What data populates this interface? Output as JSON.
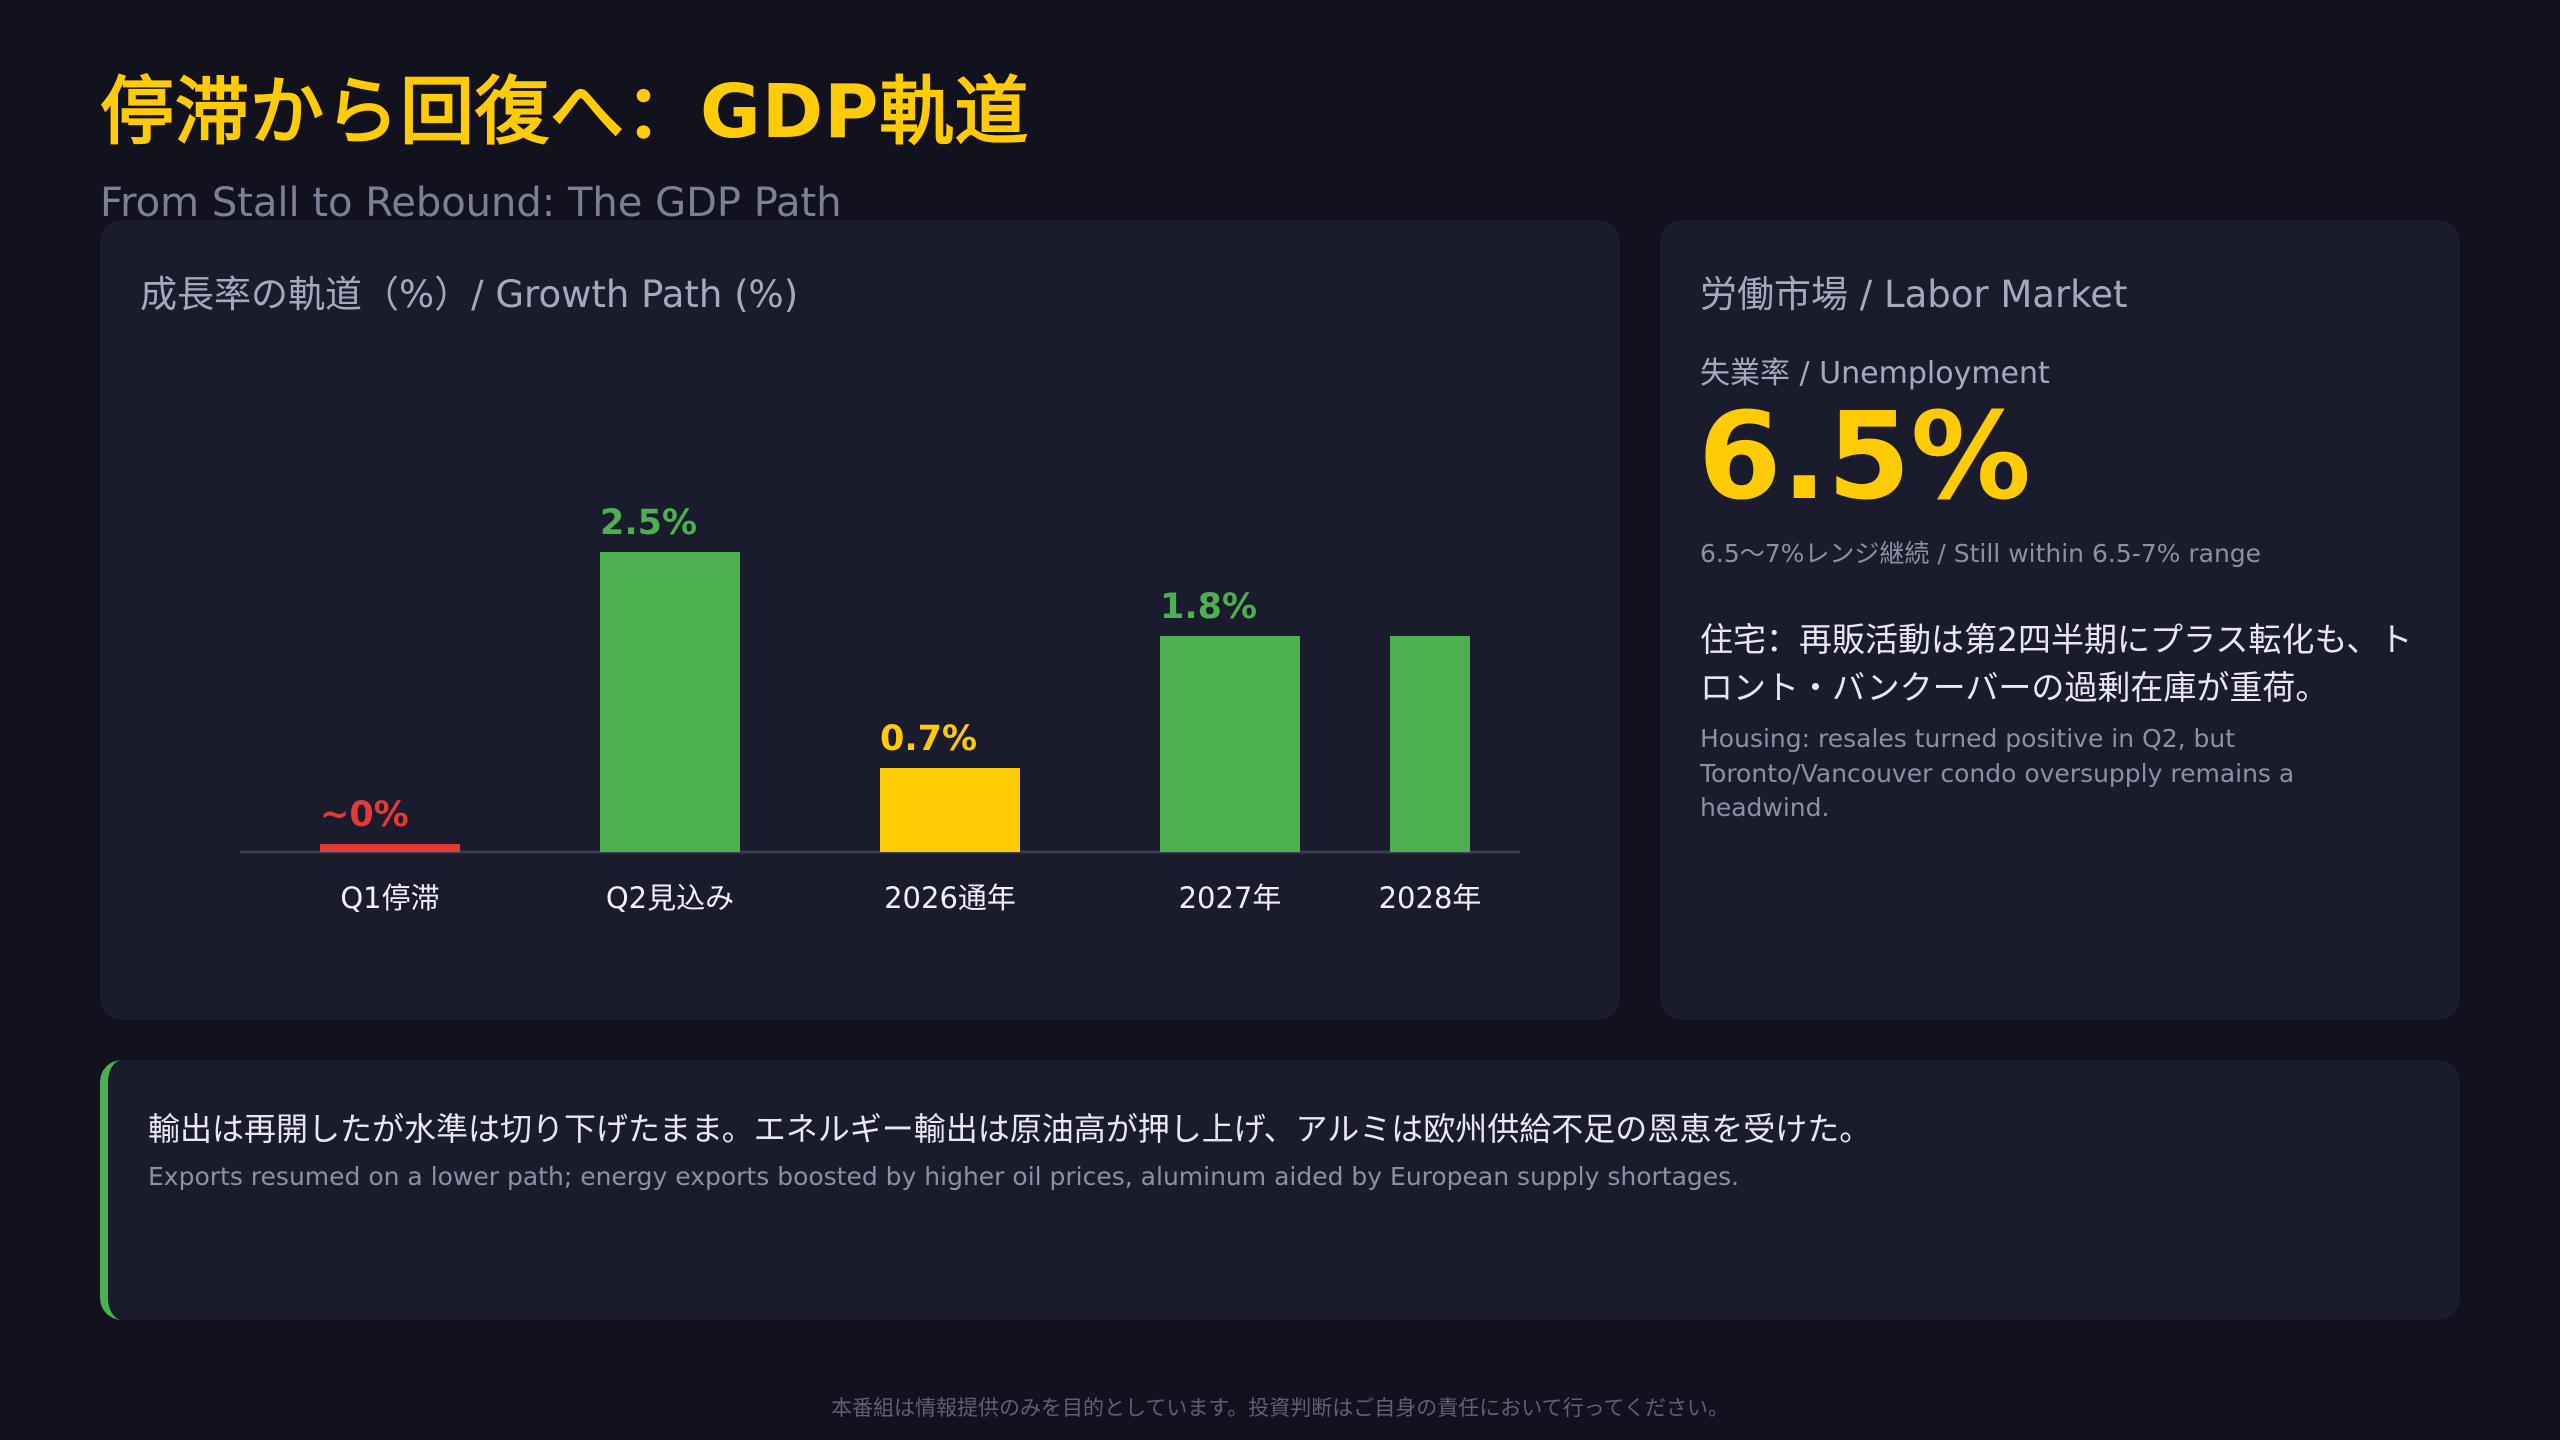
{
  "header": {
    "title": "停滞から回復へ：GDP軌道",
    "subtitle": "From Stall to Rebound: The GDP Path"
  },
  "chart_panel": {
    "heading": "成長率の軌道（%）/ Growth Path (%)"
  },
  "chart_data": {
    "type": "bar",
    "title": "成長率の軌道（%）/ Growth Path (%)",
    "categories": [
      "Q1停滞",
      "Q2見込み",
      "2026通年",
      "2027年",
      "2028年"
    ],
    "values": [
      0,
      2.5,
      0.7,
      1.8,
      1.8
    ],
    "data_labels": [
      "~0%",
      "2.5%",
      "0.7%",
      "1.8%",
      ""
    ],
    "colors": [
      "#e53935",
      "#4caf50",
      "#ffcb05",
      "#4caf50",
      "#4caf50"
    ],
    "ylim": [
      0,
      3.5
    ],
    "grid": false,
    "xlabel": "",
    "ylabel": ""
  },
  "labor": {
    "heading": "労働市場 / Labor Market",
    "metric_label": "失業率 / Unemployment",
    "metric_value": "6.5%",
    "metric_note": "6.5〜7%レンジ継続 / Still within 6.5-7% range",
    "housing_jp": "住宅：再販活動は第2四半期にプラス転化も、トロント・バンクーバーの過剰在庫が重荷。",
    "housing_en": "Housing: resales turned positive in Q2, but Toronto/Vancouver condo oversupply remains a headwind."
  },
  "exports": {
    "jp": "輸出は再開したが水準は切り下げたまま。エネルギー輸出は原油高が押し上げ、アルミは欧州供給不足の恩恵を受けた。",
    "en": "Exports resumed on a lower path; energy exports boosted by higher oil prices, aluminum aided by European supply shortages."
  },
  "footer": {
    "disclaimer": "本番組は情報提供のみを目的としています。投資判断はご自身の責任において行ってください。"
  },
  "colors": {
    "background": "#11121e",
    "card": "#1a1b2c",
    "accent_yellow": "#ffcb05",
    "accent_green": "#4caf50",
    "accent_red": "#e53935"
  }
}
